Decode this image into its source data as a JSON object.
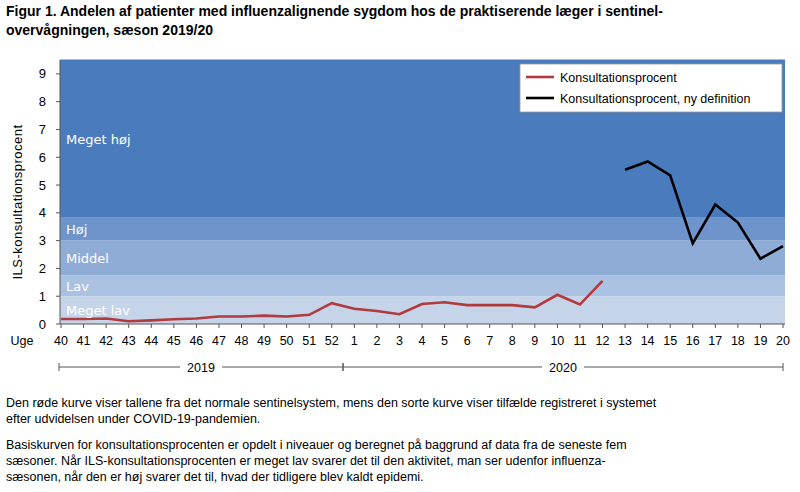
{
  "chart_data": {
    "type": "line",
    "title": "Figur 1. Andelen af patienter med influenzalignende sygdom hos de praktiserende læger i sentinel-\novervågningen, sæson 2019/20",
    "x_label": "Uge",
    "y_label": "ILS-konsultationsprocent",
    "categories": [
      "40",
      "41",
      "42",
      "43",
      "44",
      "45",
      "46",
      "47",
      "48",
      "49",
      "50",
      "51",
      "52",
      "1",
      "2",
      "3",
      "4",
      "5",
      "6",
      "7",
      "8",
      "9",
      "10",
      "11",
      "12",
      "13",
      "14",
      "15",
      "16",
      "17",
      "18",
      "19",
      "20"
    ],
    "x_groups": [
      {
        "label": "2019",
        "count": 13
      },
      {
        "label": "2020",
        "count": 20
      }
    ],
    "series": [
      {
        "name": "Konsultationsprocent",
        "color": "#b03a3c",
        "values": [
          0.18,
          0.18,
          0.2,
          0.1,
          0.13,
          0.17,
          0.2,
          0.27,
          0.27,
          0.3,
          0.27,
          0.33,
          0.75,
          0.55,
          0.47,
          0.35,
          0.72,
          0.78,
          0.68,
          0.68,
          0.68,
          0.6,
          1.05,
          0.7,
          1.55,
          null,
          null,
          null,
          null,
          null,
          null,
          null,
          null
        ]
      },
      {
        "name": "Konsultationsprocent, ny definition",
        "color": "#000000",
        "values": [
          null,
          null,
          null,
          null,
          null,
          null,
          null,
          null,
          null,
          null,
          null,
          null,
          null,
          null,
          null,
          null,
          null,
          null,
          null,
          null,
          null,
          null,
          null,
          null,
          null,
          5.55,
          5.85,
          5.35,
          2.9,
          4.3,
          3.65,
          2.35,
          2.8
        ]
      }
    ],
    "ylim": [
      0,
      9.5
    ],
    "yticks": [
      0,
      1,
      2,
      3,
      4,
      5,
      6,
      7,
      8,
      9
    ],
    "bands": [
      {
        "name": "Meget lav",
        "from": 0,
        "to": 1.0,
        "color": "#c6d4ea"
      },
      {
        "name": "Lav",
        "from": 1.0,
        "to": 1.75,
        "color": "#abc1e2"
      },
      {
        "name": "Middel",
        "from": 1.75,
        "to": 3.0,
        "color": "#8facd7"
      },
      {
        "name": "Høj",
        "from": 3.0,
        "to": 3.85,
        "color": "#6f94cb"
      },
      {
        "name": "Meget høj",
        "from": 3.85,
        "to": 9.5,
        "color": "#4a7bbd"
      }
    ],
    "legend": "upper right",
    "grid": false,
    "notes": [
      "Den røde kurve viser tallene fra det normale sentinelsystem, mens den sorte kurve viser tilfælde registreret i systemet\nefter udvidelsen under COVID-19-pandemien.",
      "Basiskurven for konsultationsprocenten er opdelt i niveauer og beregnet på baggrund af data fra de seneste fem\nsæsoner. Når ILS-konsultationsprocenten er meget lav svarer det til den aktivitet, man ser udenfor influenza-\nsæsonen, når den er høj svarer det til, hvad der tidligere blev kaldt epidemi."
    ]
  }
}
